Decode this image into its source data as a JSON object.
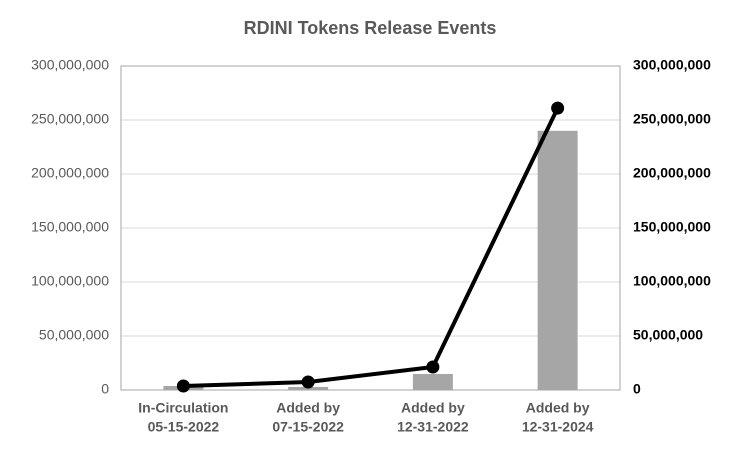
{
  "chart_data": {
    "type": "bar-line",
    "title": "RDINI  Tokens Release Events",
    "categories": [
      [
        "In-Circulation",
        "05-15-2022"
      ],
      [
        "Added by",
        "07-15-2022"
      ],
      [
        "Added by",
        "12-31-2022"
      ],
      [
        "Added by",
        "12-31-2024"
      ]
    ],
    "series": [
      {
        "type": "bar",
        "color": "#a6a6a6",
        "values": [
          3700000,
          2800000,
          14800000,
          240000000
        ]
      },
      {
        "type": "line",
        "axis": "y2",
        "color": "#000000",
        "values": [
          3700000,
          7400000,
          21300000,
          261000000
        ]
      }
    ],
    "ylim": [
      0,
      300000000
    ],
    "yticks": [
      0,
      {
        "value": 50000000,
        "label": "50,000,000"
      },
      {
        "value": 100000000,
        "label": "100,000,000"
      },
      {
        "value": 150000000,
        "label": "150,000,000"
      },
      {
        "value": 200000000,
        "label": "200,000,000"
      },
      {
        "value": 250000000,
        "label": "250,000,000"
      },
      {
        "value": 300000000,
        "label": "300,000,000"
      }
    ],
    "y2lim": [
      0,
      300000000
    ],
    "y2ticks": [
      0,
      {
        "value": 50000000,
        "label": "50,000,000"
      },
      {
        "value": 100000000,
        "label": "100,000,000"
      },
      {
        "value": 150000000,
        "label": "150,000,000"
      },
      {
        "value": 200000000,
        "label": "200,000,000"
      },
      {
        "value": 250000000,
        "label": "250,000,000"
      },
      {
        "value": 300000000,
        "label": "300,000,000"
      }
    ],
    "grid": true
  }
}
